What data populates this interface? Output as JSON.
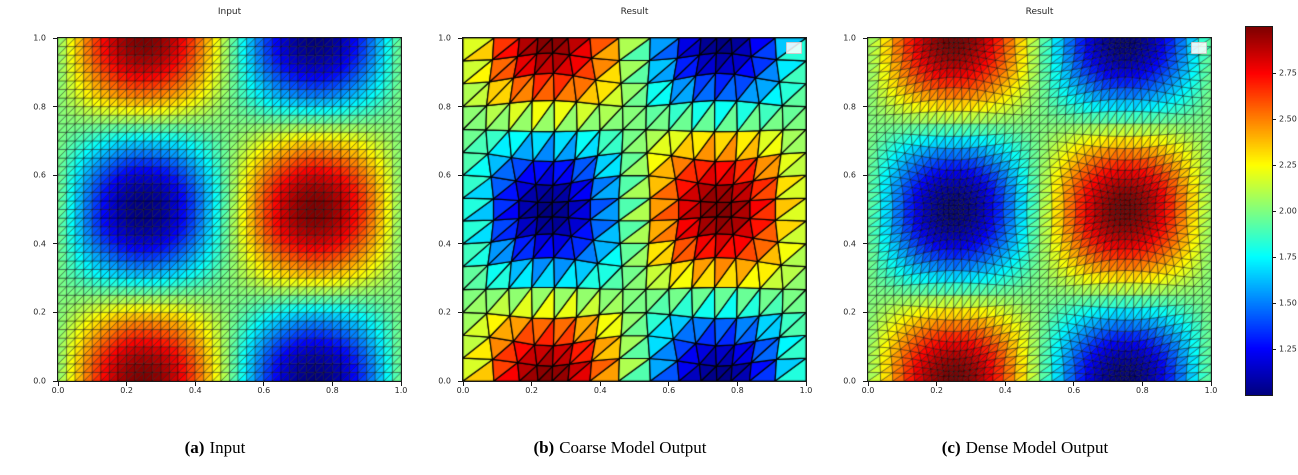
{
  "figure": {
    "background": "#ffffff",
    "panels": [
      {
        "id": "a",
        "title": "Input",
        "caption_label": "(a)",
        "caption_text": "Input",
        "has_legend": false
      },
      {
        "id": "b",
        "title": "Result",
        "caption_label": "(b)",
        "caption_text": "Coarse Model Output",
        "has_legend": true
      },
      {
        "id": "c",
        "title": "Result",
        "caption_label": "(c)",
        "caption_text": "Dense Model Output",
        "has_legend": true
      }
    ],
    "axis": {
      "xtick_labels": [
        "0.0",
        "0.2",
        "0.4",
        "0.6",
        "0.8",
        "1.0"
      ],
      "ytick_labels": [
        "0.0",
        "0.2",
        "0.4",
        "0.6",
        "0.8",
        "1.0"
      ]
    },
    "colorbar": {
      "tick_labels": [
        "2.75",
        "2.50",
        "2.25",
        "2.00",
        "1.75",
        "1.50",
        "1.25"
      ],
      "vmin": 1.0,
      "vmax": 3.0,
      "colormap": "jet"
    }
  },
  "chart_data": [
    {
      "type": "heatmap",
      "title": "Input",
      "xlabel": "",
      "ylabel": "",
      "xlim": [
        0,
        1
      ],
      "ylim": [
        0,
        1
      ],
      "grid": false,
      "legend": false,
      "field_formula": "f(x,y) = 2 + sin(2*pi*x)*cos(2*pi*y)",
      "field_min": 1.0,
      "field_max": 3.0,
      "vmin": 1.0,
      "vmax": 3.0,
      "colormap": "jet",
      "mesh": "uniform fine triangular mesh (triangulated regular grid)",
      "mesh_resolution": 40,
      "warp_strength": 0,
      "line_width": 0.5,
      "sample_grid": {
        "x": [
          0.0,
          0.2,
          0.4,
          0.6,
          0.8,
          1.0
        ],
        "y": [
          0.0,
          0.2,
          0.4,
          0.6,
          0.8,
          1.0
        ],
        "values": [
          [
            2.0,
            2.95,
            2.59,
            1.41,
            1.05,
            2.0
          ],
          [
            2.0,
            2.29,
            2.18,
            1.82,
            1.71,
            2.0
          ],
          [
            2.0,
            1.23,
            1.52,
            2.48,
            2.77,
            2.0
          ],
          [
            2.0,
            1.23,
            1.52,
            2.48,
            2.77,
            2.0
          ],
          [
            2.0,
            2.29,
            2.18,
            1.82,
            1.71,
            2.0
          ],
          [
            2.0,
            2.95,
            2.59,
            1.41,
            1.05,
            2.0
          ]
        ]
      }
    },
    {
      "type": "heatmap",
      "title": "Result",
      "xlabel": "",
      "ylabel": "",
      "xlim": [
        0,
        1
      ],
      "ylim": [
        0,
        1
      ],
      "grid": false,
      "legend": true,
      "field_formula": "f(x,y) = 2 + sin(2*pi*x)*cos(2*pi*y)",
      "field_min": 1.0,
      "field_max": 3.0,
      "vmin": 1.0,
      "vmax": 3.0,
      "colormap": "jet",
      "mesh": "coarse adapted triangular mesh, flat-shaded elements",
      "mesh_resolution": 15,
      "warp_strength": 0.01,
      "line_width": 1.2
    },
    {
      "type": "heatmap",
      "title": "Result",
      "xlabel": "",
      "ylabel": "",
      "xlim": [
        0,
        1
      ],
      "ylim": [
        0,
        1
      ],
      "grid": false,
      "legend": true,
      "field_formula": "f(x,y) = 2 + sin(2*pi*x)*cos(2*pi*y)",
      "field_min": 1.0,
      "field_max": 3.0,
      "vmin": 1.0,
      "vmax": 3.0,
      "colormap": "jet",
      "mesh": "dense adapted triangular mesh concentrated near field extrema",
      "mesh_resolution": 40,
      "warp_strength": 0.012,
      "line_width": 0.5
    }
  ]
}
